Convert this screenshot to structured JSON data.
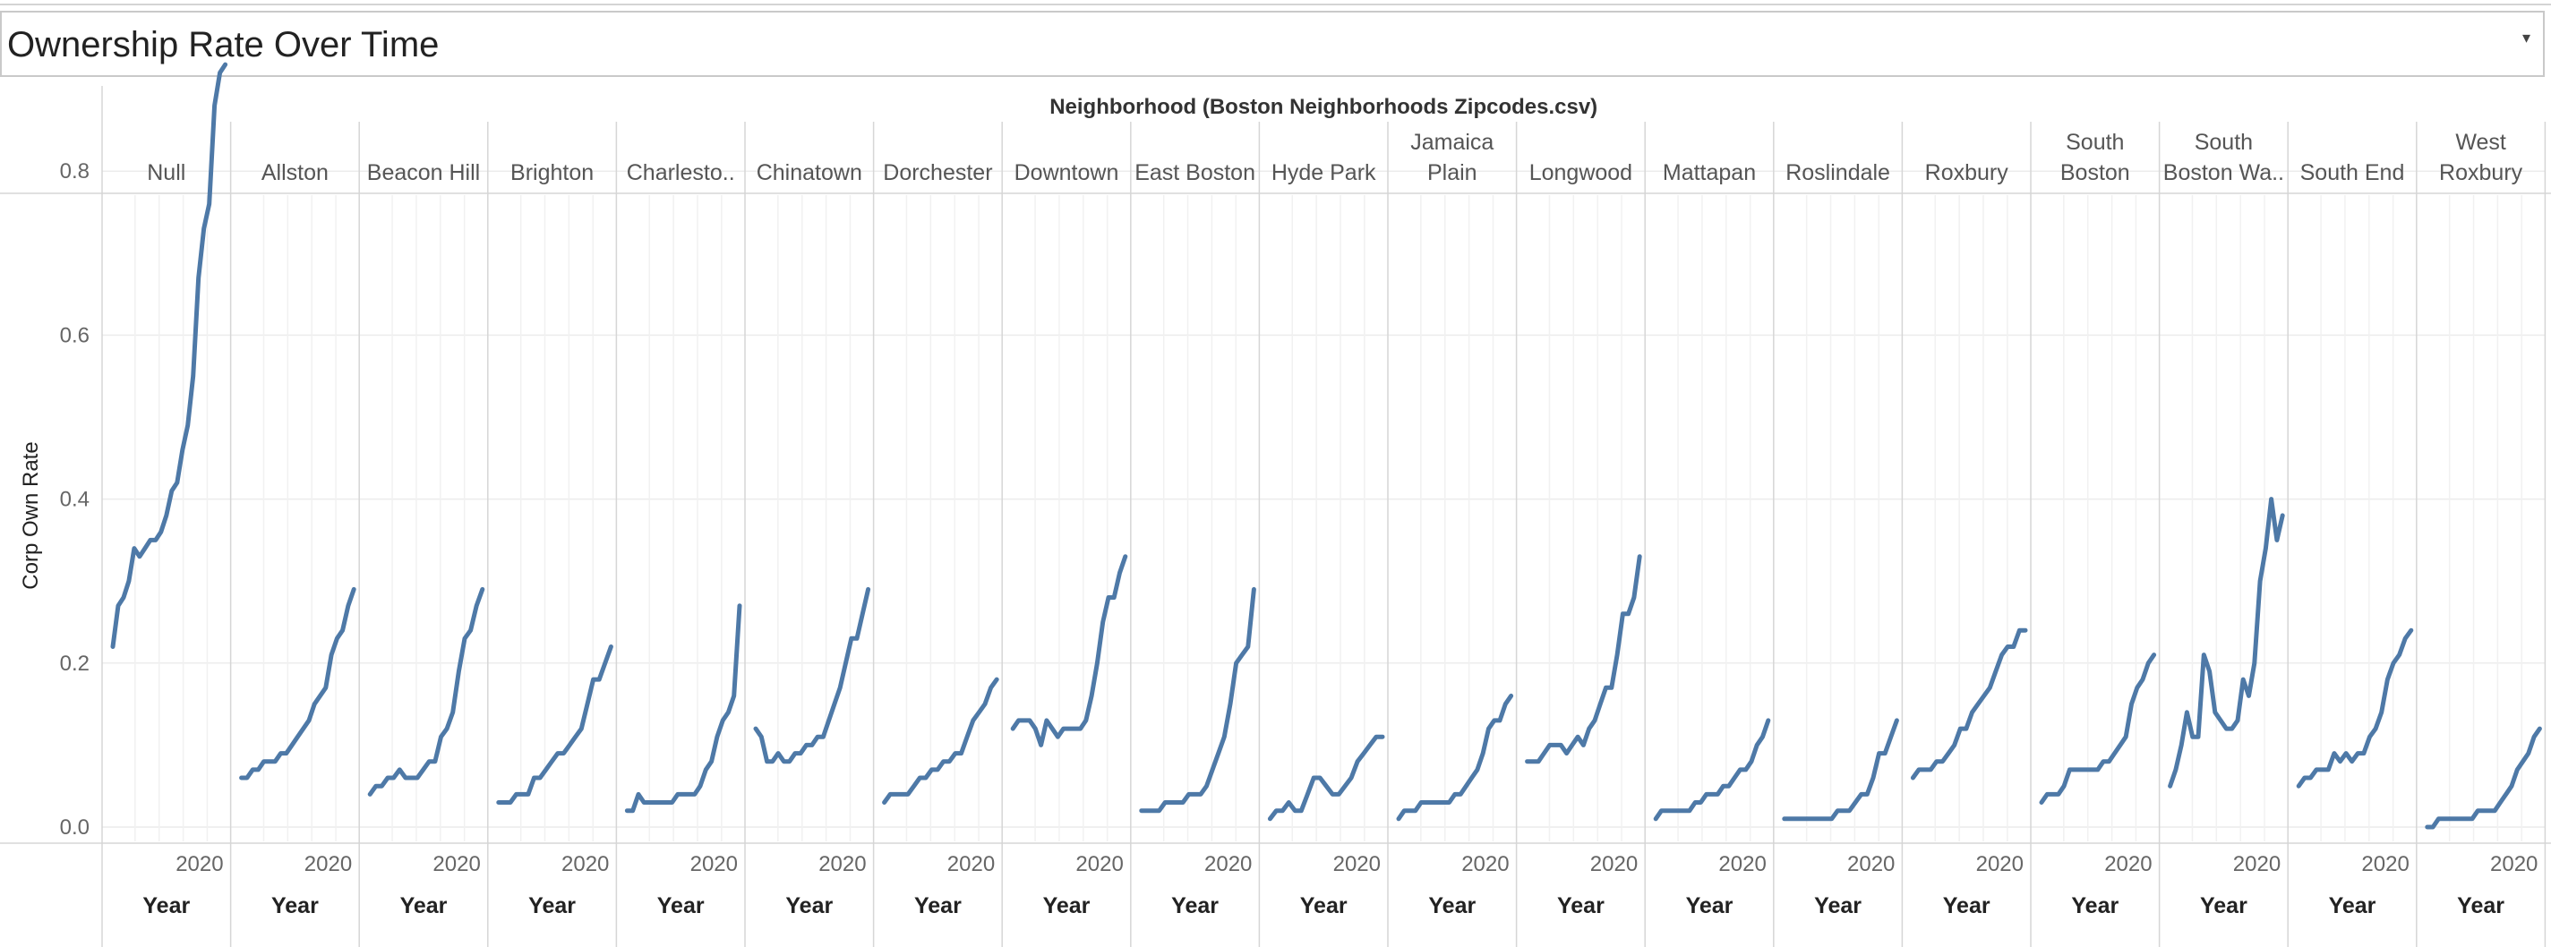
{
  "title": "Ownership Rate Over Time",
  "dropdown_icon": "chevron-down-icon",
  "chart_data": {
    "type": "line",
    "facet_label": "Neighborhood (Boston Neighborhoods Zipcodes.csv)",
    "ylabel": "Corp Own Rate",
    "xlabel": "Year",
    "x_tick": "2020",
    "ylim": [
      0,
      0.95
    ],
    "y_ticks": [
      0.0,
      0.2,
      0.4,
      0.6,
      0.8
    ],
    "y_tick_labels": [
      "0.0",
      "0.2",
      "0.4",
      "0.6",
      "0.8"
    ],
    "line_color": "#4e79a7",
    "grid": true,
    "panels": [
      {
        "name": [
          "Null"
        ],
        "values": [
          0.22,
          0.27,
          0.28,
          0.3,
          0.34,
          0.33,
          0.34,
          0.35,
          0.35,
          0.36,
          0.38,
          0.41,
          0.42,
          0.46,
          0.49,
          0.55,
          0.67,
          0.73,
          0.76,
          0.88,
          0.92,
          0.93
        ]
      },
      {
        "name": [
          "Allston"
        ],
        "values": [
          0.06,
          0.06,
          0.07,
          0.07,
          0.08,
          0.08,
          0.08,
          0.09,
          0.09,
          0.1,
          0.11,
          0.12,
          0.13,
          0.15,
          0.16,
          0.17,
          0.21,
          0.23,
          0.24,
          0.27,
          0.29
        ]
      },
      {
        "name": [
          "Beacon Hill"
        ],
        "values": [
          0.04,
          0.05,
          0.05,
          0.06,
          0.06,
          0.07,
          0.06,
          0.06,
          0.06,
          0.07,
          0.08,
          0.08,
          0.11,
          0.12,
          0.14,
          0.19,
          0.23,
          0.24,
          0.27,
          0.29
        ]
      },
      {
        "name": [
          "Brighton"
        ],
        "values": [
          0.03,
          0.03,
          0.03,
          0.04,
          0.04,
          0.04,
          0.06,
          0.06,
          0.07,
          0.08,
          0.09,
          0.09,
          0.1,
          0.11,
          0.12,
          0.15,
          0.18,
          0.18,
          0.2,
          0.22
        ]
      },
      {
        "name": [
          "Charlesto.."
        ],
        "values": [
          0.02,
          0.02,
          0.04,
          0.03,
          0.03,
          0.03,
          0.03,
          0.03,
          0.03,
          0.04,
          0.04,
          0.04,
          0.04,
          0.05,
          0.07,
          0.08,
          0.11,
          0.13,
          0.14,
          0.16,
          0.27
        ]
      },
      {
        "name": [
          "Chinatown"
        ],
        "values": [
          0.12,
          0.11,
          0.08,
          0.08,
          0.09,
          0.08,
          0.08,
          0.09,
          0.09,
          0.1,
          0.1,
          0.11,
          0.11,
          0.13,
          0.15,
          0.17,
          0.2,
          0.23,
          0.23,
          0.26,
          0.29
        ]
      },
      {
        "name": [
          "Dorchester"
        ],
        "values": [
          0.03,
          0.04,
          0.04,
          0.04,
          0.04,
          0.05,
          0.06,
          0.06,
          0.07,
          0.07,
          0.08,
          0.08,
          0.09,
          0.09,
          0.11,
          0.13,
          0.14,
          0.15,
          0.17,
          0.18
        ]
      },
      {
        "name": [
          "Downtown"
        ],
        "values": [
          0.12,
          0.13,
          0.13,
          0.13,
          0.12,
          0.1,
          0.13,
          0.12,
          0.11,
          0.12,
          0.12,
          0.12,
          0.12,
          0.13,
          0.16,
          0.2,
          0.25,
          0.28,
          0.28,
          0.31,
          0.33
        ]
      },
      {
        "name": [
          "East Boston"
        ],
        "values": [
          0.02,
          0.02,
          0.02,
          0.02,
          0.03,
          0.03,
          0.03,
          0.03,
          0.04,
          0.04,
          0.04,
          0.05,
          0.07,
          0.09,
          0.11,
          0.15,
          0.2,
          0.21,
          0.22,
          0.29
        ]
      },
      {
        "name": [
          "Hyde Park"
        ],
        "values": [
          0.01,
          0.02,
          0.02,
          0.03,
          0.02,
          0.02,
          0.04,
          0.06,
          0.06,
          0.05,
          0.04,
          0.04,
          0.05,
          0.06,
          0.08,
          0.09,
          0.1,
          0.11,
          0.11
        ]
      },
      {
        "name": [
          "Jamaica",
          "Plain"
        ],
        "values": [
          0.01,
          0.02,
          0.02,
          0.02,
          0.03,
          0.03,
          0.03,
          0.03,
          0.03,
          0.03,
          0.04,
          0.04,
          0.05,
          0.06,
          0.07,
          0.09,
          0.12,
          0.13,
          0.13,
          0.15,
          0.16
        ]
      },
      {
        "name": [
          "Longwood"
        ],
        "values": [
          0.08,
          0.08,
          0.08,
          0.09,
          0.1,
          0.1,
          0.1,
          0.09,
          0.1,
          0.11,
          0.1,
          0.12,
          0.13,
          0.15,
          0.17,
          0.17,
          0.21,
          0.26,
          0.26,
          0.28,
          0.33
        ]
      },
      {
        "name": [
          "Mattapan"
        ],
        "values": [
          0.01,
          0.02,
          0.02,
          0.02,
          0.02,
          0.02,
          0.02,
          0.03,
          0.03,
          0.04,
          0.04,
          0.04,
          0.05,
          0.05,
          0.06,
          0.07,
          0.07,
          0.08,
          0.1,
          0.11,
          0.13
        ]
      },
      {
        "name": [
          "Roslindale"
        ],
        "values": [
          0.01,
          0.01,
          0.01,
          0.01,
          0.01,
          0.01,
          0.01,
          0.01,
          0.01,
          0.02,
          0.02,
          0.02,
          0.03,
          0.04,
          0.04,
          0.06,
          0.09,
          0.09,
          0.11,
          0.13
        ]
      },
      {
        "name": [
          "Roxbury"
        ],
        "values": [
          0.06,
          0.07,
          0.07,
          0.07,
          0.08,
          0.08,
          0.09,
          0.1,
          0.12,
          0.12,
          0.14,
          0.15,
          0.16,
          0.17,
          0.19,
          0.21,
          0.22,
          0.22,
          0.24,
          0.24
        ]
      },
      {
        "name": [
          "South",
          "Boston"
        ],
        "values": [
          0.03,
          0.04,
          0.04,
          0.04,
          0.05,
          0.07,
          0.07,
          0.07,
          0.07,
          0.07,
          0.07,
          0.08,
          0.08,
          0.09,
          0.1,
          0.11,
          0.15,
          0.17,
          0.18,
          0.2,
          0.21
        ]
      },
      {
        "name": [
          "South",
          "Boston Wa.."
        ],
        "values": [
          0.05,
          0.07,
          0.1,
          0.14,
          0.11,
          0.11,
          0.21,
          0.19,
          0.14,
          0.13,
          0.12,
          0.12,
          0.13,
          0.18,
          0.16,
          0.2,
          0.3,
          0.34,
          0.4,
          0.35,
          0.38
        ]
      },
      {
        "name": [
          "South End"
        ],
        "values": [
          0.05,
          0.06,
          0.06,
          0.07,
          0.07,
          0.07,
          0.09,
          0.08,
          0.09,
          0.08,
          0.09,
          0.09,
          0.11,
          0.12,
          0.14,
          0.18,
          0.2,
          0.21,
          0.23,
          0.24
        ]
      },
      {
        "name": [
          "West",
          "Roxbury"
        ],
        "values": [
          0.0,
          0.0,
          0.01,
          0.01,
          0.01,
          0.01,
          0.01,
          0.01,
          0.01,
          0.02,
          0.02,
          0.02,
          0.02,
          0.03,
          0.04,
          0.05,
          0.07,
          0.08,
          0.09,
          0.11,
          0.12
        ]
      }
    ]
  }
}
